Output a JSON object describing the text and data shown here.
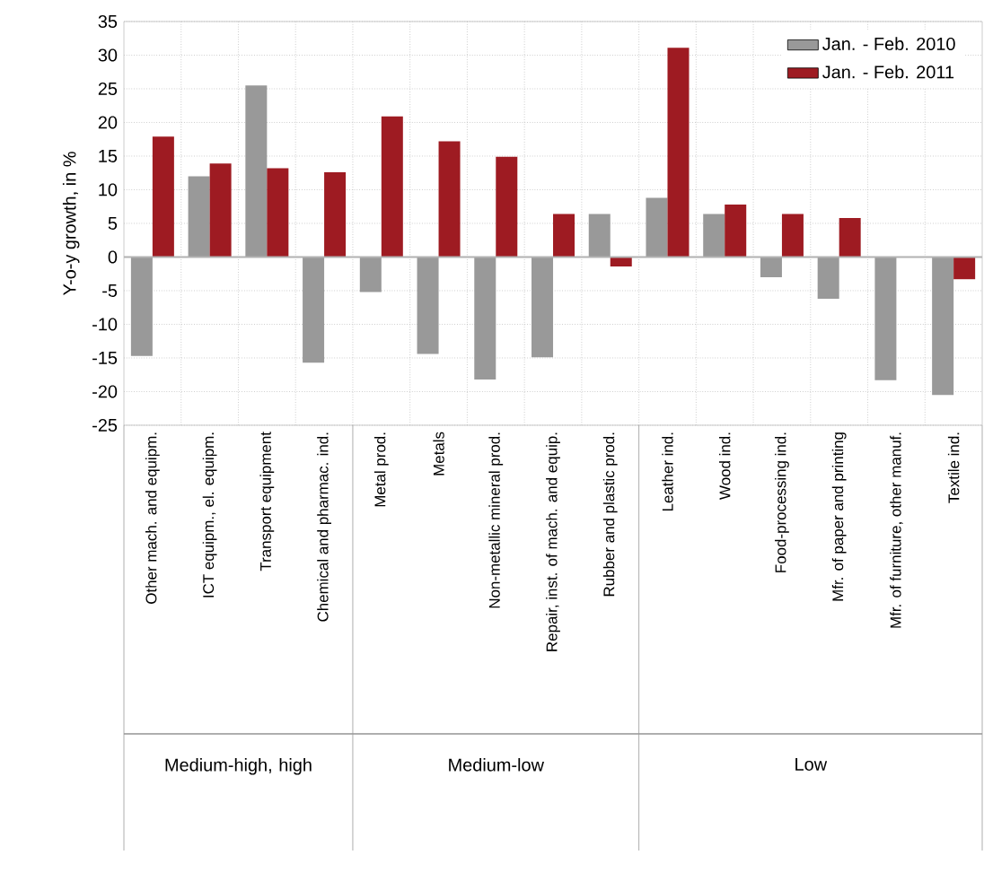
{
  "chart_data": {
    "type": "bar",
    "ylabel": "Y-o-y growth, in %",
    "categories": [
      "Other mach. and equipm.",
      "ICT equipm., el. equipm.",
      "Transport equipment",
      "Chemical and pharmac. ind.",
      "Metal prod.",
      "Metals",
      "Non-metallic mineral prod.",
      "Repair, inst. of mach. and equip.",
      "Rubber and plastic prod.",
      "Leather ind.",
      "Wood ind.",
      "Food-processing ind.",
      "Mfr. of paper and printing",
      "Mfr. of furniture, other manuf.",
      "Textile ind."
    ],
    "series": [
      {
        "name": "Jan. - Feb. 2010",
        "color": "#999999",
        "values": [
          -14.7,
          12,
          25.5,
          -15.7,
          -5.2,
          -14.4,
          -18.2,
          -14.9,
          6.4,
          8.8,
          6.4,
          -3,
          -6.2,
          -18.3,
          -20.5
        ]
      },
      {
        "name": "Jan. - Feb. 2011",
        "color": "#9e1b22",
        "values": [
          17.9,
          13.9,
          13.2,
          12.6,
          20.9,
          17.2,
          14.9,
          6.4,
          -1.4,
          31.1,
          7.8,
          6.4,
          5.8,
          null,
          -3.3
        ]
      }
    ],
    "ylim": [
      -25,
      35
    ],
    "yticks": [
      -25,
      -20,
      -15,
      -10,
      -5,
      0,
      5,
      10,
      15,
      20,
      25,
      30,
      35
    ],
    "grid": true,
    "legend": "top right",
    "annotations": [
      "Medium-high, high",
      "Medium-low",
      "Low"
    ]
  }
}
